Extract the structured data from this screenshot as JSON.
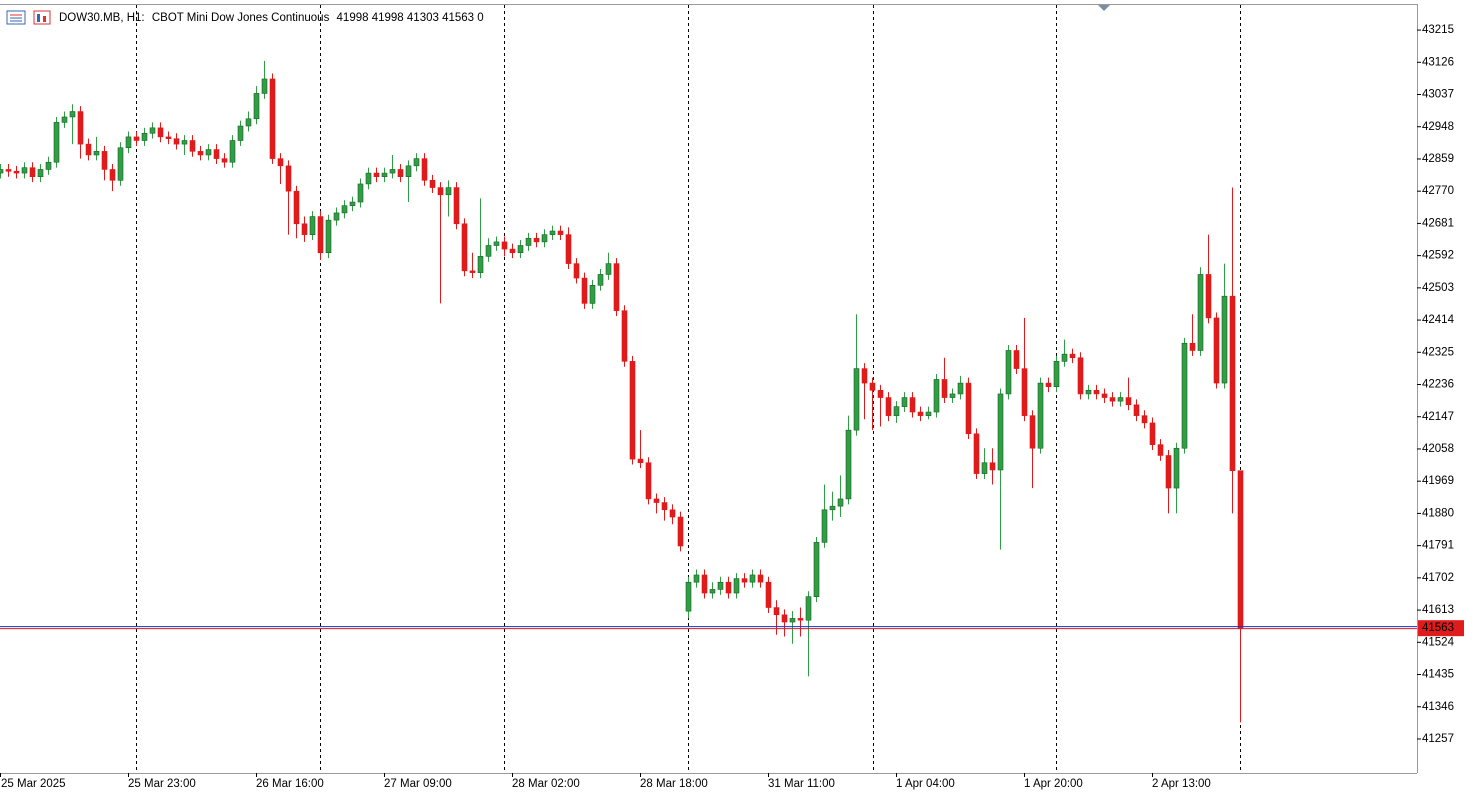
{
  "chart_data": {
    "type": "candlestick",
    "symbol": "DOW30.MB, H1:",
    "description": "CBOT Mini Dow Jones Continuous",
    "volume": 0,
    "up_color": "#2f9e44",
    "down_color": "#e01b1b",
    "ask_line_color": "#1c2fc8",
    "bid_line_color": "#e01b1b",
    "categories": [
      "25 Mar 2025",
      null,
      null,
      null,
      null,
      null,
      null,
      null,
      null,
      null,
      null,
      null,
      null,
      null,
      null,
      null,
      "25 Mar 23:00",
      null,
      null,
      null,
      null,
      null,
      null,
      null,
      null,
      null,
      null,
      null,
      null,
      null,
      null,
      null,
      "26 Mar 16:00",
      null,
      null,
      null,
      null,
      null,
      null,
      null,
      null,
      null,
      null,
      null,
      null,
      null,
      null,
      null,
      "27 Mar 09:00",
      null,
      null,
      null,
      null,
      null,
      null,
      null,
      null,
      null,
      null,
      null,
      null,
      null,
      null,
      null,
      "28 Mar 02:00",
      null,
      null,
      null,
      null,
      null,
      null,
      null,
      null,
      null,
      null,
      null,
      null,
      null,
      null,
      null,
      "28 Mar 18:00",
      null,
      null,
      null,
      null,
      null,
      null,
      null,
      null,
      null,
      null,
      null,
      null,
      null,
      null,
      null,
      "31 Mar 11:00",
      null,
      null,
      null,
      null,
      null,
      null,
      null,
      null,
      null,
      null,
      null,
      null,
      null,
      null,
      null,
      "1 Apr 04:00",
      null,
      null,
      null,
      null,
      null,
      null,
      null,
      null,
      null,
      null,
      null,
      null,
      null,
      null,
      null,
      "1 Apr 20:00",
      null,
      null,
      null,
      null,
      null,
      null,
      null,
      null,
      null,
      null,
      null,
      null,
      null,
      null,
      null,
      "2 Apr 13:00",
      null,
      null,
      null,
      null,
      null,
      null,
      null,
      null,
      null,
      null,
      null
    ],
    "open": [
      42820,
      42830,
      42825,
      42820,
      42835,
      42810,
      42830,
      42850,
      42960,
      42975,
      42990,
      42900,
      42870,
      42880,
      42830,
      42800,
      42890,
      42920,
      42910,
      42930,
      42945,
      42920,
      42915,
      42900,
      42910,
      42880,
      42870,
      42885,
      42860,
      42850,
      42910,
      42950,
      42970,
      43040,
      43080,
      42860,
      42840,
      42770,
      42680,
      42650,
      42700,
      42600,
      42690,
      42710,
      42730,
      42740,
      42790,
      42820,
      42810,
      42820,
      42830,
      42810,
      42840,
      42860,
      42800,
      42780,
      42760,
      42780,
      42680,
      42550,
      42545,
      42590,
      42620,
      42630,
      42610,
      42600,
      42620,
      42640,
      42630,
      42650,
      42660,
      42650,
      42570,
      42530,
      42460,
      42510,
      42540,
      42570,
      42440,
      42300,
      42030,
      42020,
      41920,
      41910,
      41890,
      41870,
      41610,
      41690,
      41710,
      41660,
      41670,
      41690,
      41660,
      41700,
      41690,
      41710,
      41690,
      41620,
      41600,
      41580,
      41590,
      41585,
      41650,
      41800,
      41890,
      41900,
      41920,
      42110,
      42280,
      42240,
      42220,
      42200,
      42150,
      42175,
      42200,
      42160,
      42150,
      42160,
      42250,
      42200,
      42210,
      42240,
      42100,
      41990,
      42020,
      42000,
      42210,
      42330,
      42280,
      42150,
      42060,
      42240,
      42230,
      42300,
      42320,
      42310,
      42210,
      42220,
      42210,
      42200,
      42190,
      42200,
      42180,
      42150,
      42130,
      42070,
      42040,
      41950,
      42060,
      42350,
      42330,
      42540,
      42420,
      42240,
      42480,
      41998
    ],
    "high": [
      42845,
      42845,
      42840,
      42850,
      42850,
      42845,
      42865,
      42975,
      42990,
      43010,
      43005,
      42915,
      42920,
      42895,
      42845,
      42905,
      42935,
      42935,
      42945,
      42960,
      42960,
      42935,
      42930,
      42925,
      42925,
      42895,
      42900,
      42900,
      42875,
      42925,
      42965,
      42990,
      43060,
      43130,
      43095,
      42875,
      42855,
      42785,
      42700,
      42715,
      42715,
      42705,
      42725,
      42745,
      42755,
      42805,
      42835,
      42835,
      42835,
      42870,
      42845,
      42855,
      42875,
      42875,
      42815,
      42795,
      42800,
      42795,
      42695,
      42600,
      42750,
      42640,
      42645,
      42645,
      42625,
      42635,
      42655,
      42655,
      42665,
      42675,
      42675,
      42670,
      42585,
      42545,
      42525,
      42555,
      42600,
      42585,
      42455,
      42315,
      42110,
      42035,
      41935,
      41925,
      41905,
      41885,
      41705,
      41725,
      41725,
      41690,
      41705,
      41705,
      41715,
      41715,
      41725,
      41725,
      41705,
      41640,
      41615,
      41610,
      41620,
      41665,
      41815,
      41960,
      41940,
      41985,
      42150,
      42430,
      42295,
      42255,
      42235,
      42215,
      42190,
      42215,
      42215,
      42175,
      42175,
      42265,
      42310,
      42225,
      42260,
      42255,
      42115,
      42060,
      42060,
      42225,
      42345,
      42345,
      42420,
      42165,
      42255,
      42255,
      42315,
      42360,
      42335,
      42325,
      42235,
      42235,
      42225,
      42215,
      42215,
      42255,
      42195,
      42165,
      42145,
      42085,
      42055,
      42075,
      42365,
      42430,
      42560,
      42650,
      42435,
      42570,
      42780,
      41998
    ],
    "low": [
      42805,
      42810,
      42805,
      42805,
      42795,
      42795,
      42815,
      42835,
      42945,
      42900,
      42860,
      42855,
      42855,
      42800,
      42770,
      42785,
      42875,
      42895,
      42895,
      42915,
      42905,
      42900,
      42885,
      42870,
      42865,
      42855,
      42855,
      42845,
      42835,
      42835,
      42895,
      42935,
      42955,
      43025,
      42845,
      42790,
      42650,
      42640,
      42630,
      42635,
      42580,
      42585,
      42675,
      42695,
      42715,
      42725,
      42775,
      42795,
      42795,
      42805,
      42795,
      42740,
      42825,
      42785,
      42765,
      42460,
      42700,
      42665,
      42535,
      42530,
      42530,
      42575,
      42605,
      42590,
      42585,
      42585,
      42605,
      42615,
      42615,
      42635,
      42635,
      42555,
      42515,
      42445,
      42445,
      42495,
      42525,
      42425,
      42285,
      42015,
      42005,
      41905,
      41880,
      41860,
      41850,
      41775,
      41590,
      41675,
      41645,
      41645,
      41655,
      41645,
      41645,
      41675,
      41675,
      41675,
      41605,
      41545,
      41540,
      41520,
      41540,
      41430,
      41635,
      41785,
      41860,
      41870,
      41905,
      42095,
      42140,
      42110,
      42120,
      42135,
      42130,
      42160,
      42145,
      42135,
      42140,
      42145,
      42185,
      42185,
      42195,
      42085,
      41975,
      41975,
      41960,
      41780,
      42195,
      42265,
      42135,
      41950,
      42045,
      42215,
      42215,
      42285,
      42295,
      42195,
      42195,
      42195,
      42185,
      42175,
      42175,
      42165,
      42135,
      42115,
      42055,
      42025,
      41880,
      41880,
      42045,
      42315,
      42315,
      42405,
      42225,
      42225,
      41880,
      41303
    ],
    "close": [
      42830,
      42825,
      42820,
      42835,
      42810,
      42830,
      42850,
      42960,
      42975,
      42990,
      42900,
      42870,
      42880,
      42830,
      42800,
      42890,
      42920,
      42910,
      42930,
      42945,
      42920,
      42915,
      42900,
      42910,
      42880,
      42870,
      42885,
      42860,
      42850,
      42910,
      42950,
      42970,
      43040,
      43080,
      42860,
      42840,
      42770,
      42680,
      42650,
      42700,
      42600,
      42690,
      42710,
      42730,
      42740,
      42790,
      42820,
      42810,
      42820,
      42830,
      42810,
      42840,
      42860,
      42800,
      42780,
      42760,
      42780,
      42680,
      42550,
      42545,
      42590,
      42620,
      42630,
      42610,
      42600,
      42620,
      42640,
      42630,
      42650,
      42660,
      42650,
      42570,
      42530,
      42460,
      42510,
      42540,
      42570,
      42440,
      42300,
      42030,
      42020,
      41920,
      41910,
      41890,
      41870,
      41790,
      41690,
      41710,
      41660,
      41670,
      41690,
      41660,
      41700,
      41690,
      41710,
      41690,
      41620,
      41600,
      41580,
      41590,
      41585,
      41650,
      41800,
      41890,
      41900,
      41920,
      42110,
      42280,
      42240,
      42220,
      42200,
      42150,
      42175,
      42200,
      42160,
      42150,
      42160,
      42250,
      42200,
      42210,
      42240,
      42100,
      41990,
      42020,
      42000,
      42210,
      42330,
      42280,
      42150,
      42060,
      42240,
      42230,
      42300,
      42320,
      42310,
      42210,
      42220,
      42210,
      42200,
      42190,
      42200,
      42180,
      42150,
      42130,
      42070,
      42040,
      41950,
      42060,
      42350,
      42330,
      42540,
      42420,
      42240,
      42480,
      41998,
      41563
    ],
    "ylim": [
      41163,
      43287
    ],
    "yticks": [
      43215,
      43126,
      43037,
      42948,
      42859,
      42770,
      42681,
      42592,
      42503,
      42414,
      42325,
      42236,
      42147,
      42058,
      41969,
      41880,
      41791,
      41702,
      41613,
      41524,
      41435,
      41346,
      41257
    ],
    "grid": false
  }
}
